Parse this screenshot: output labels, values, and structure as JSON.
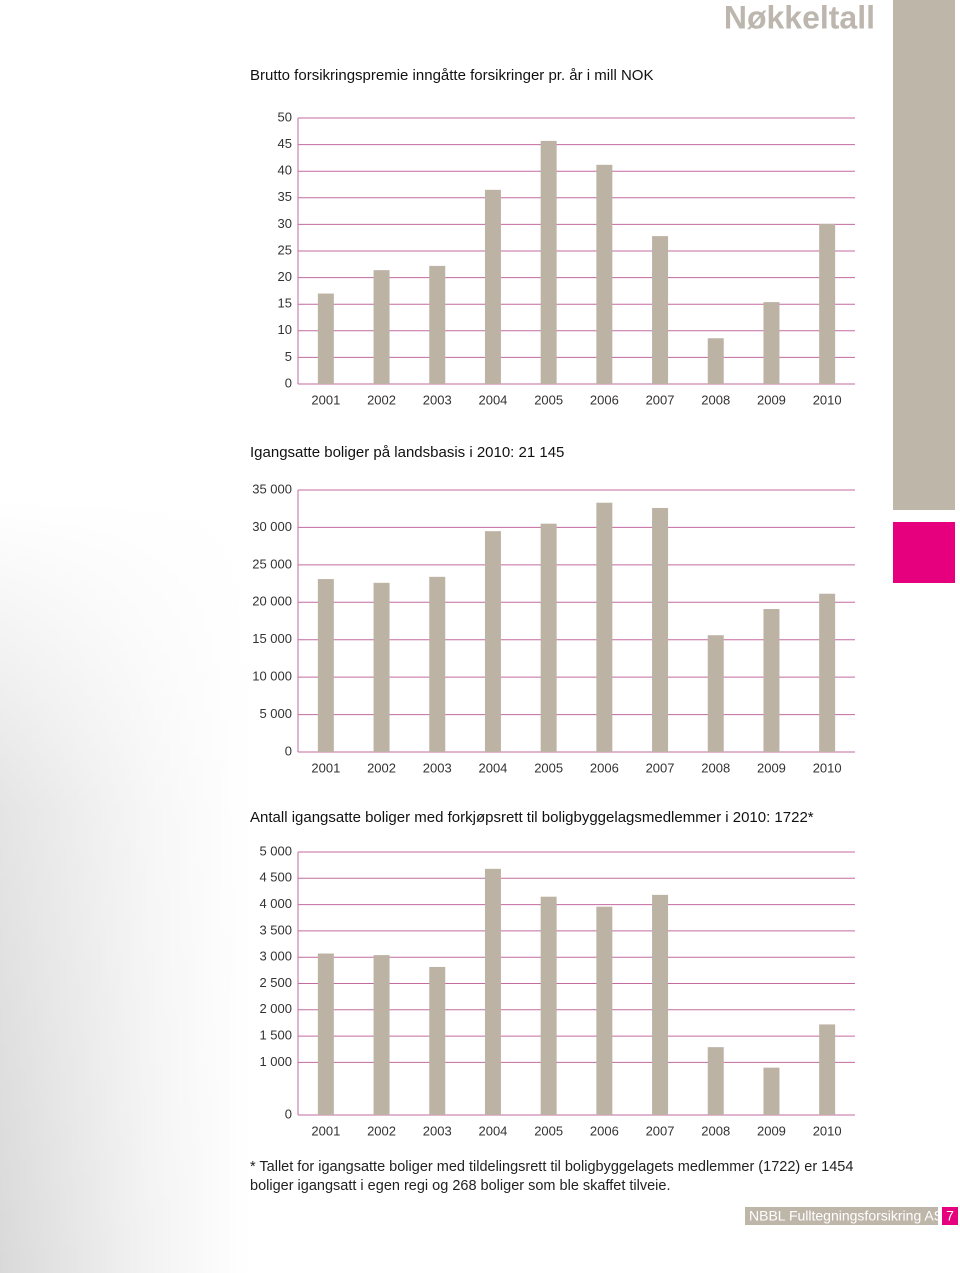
{
  "header": {
    "title": "Nøkkeltall"
  },
  "chart_data": [
    {
      "type": "bar",
      "title": "Brutto forsikringspremie inngåtte forsikringer pr. år i mill NOK",
      "categories": [
        "2001",
        "2002",
        "2003",
        "2004",
        "2005",
        "2006",
        "2007",
        "2008",
        "2009",
        "2010"
      ],
      "values": [
        17,
        21.4,
        22.2,
        36.5,
        45.7,
        41.2,
        27.8,
        8.6,
        15.4,
        30.1
      ],
      "color": "#bdb3a5",
      "grid": true,
      "grid_color": "#c36a9f",
      "ylim": [
        0,
        50
      ],
      "yticks": [
        0,
        5,
        10,
        15,
        20,
        25,
        30,
        35,
        40,
        45,
        50
      ]
    },
    {
      "type": "bar",
      "title": "Igangsatte boliger på landsbasis i 2010: 21 145",
      "categories": [
        "2001",
        "2002",
        "2003",
        "2004",
        "2005",
        "2006",
        "2007",
        "2008",
        "2009",
        "2010"
      ],
      "values": [
        23100,
        22600,
        23400,
        29500,
        30500,
        33300,
        32600,
        15600,
        19100,
        21145
      ],
      "color": "#bdb3a5",
      "grid": true,
      "grid_color": "#c36a9f",
      "ylim": [
        0,
        35000
      ],
      "yticks": [
        0,
        {
          "value": 5000,
          "label": "5 000"
        },
        {
          "value": 10000,
          "label": "10 000"
        },
        {
          "value": 15000,
          "label": "15 000"
        },
        {
          "value": 20000,
          "label": "20 000"
        },
        {
          "value": 25000,
          "label": "25 000"
        },
        {
          "value": 30000,
          "label": "30 000"
        },
        {
          "value": 35000,
          "label": "35 000"
        }
      ]
    },
    {
      "type": "bar",
      "title": "Antall igangsatte boliger med forkjøpsrett til boligbyggelagsmedlemmer i 2010: 1722*",
      "categories": [
        "2001",
        "2002",
        "2003",
        "2004",
        "2005",
        "2006",
        "2007",
        "2008",
        "2009",
        "2010"
      ],
      "values": [
        3070,
        3040,
        2815,
        4680,
        4150,
        3960,
        4185,
        1290,
        900,
        1722
      ],
      "color": "#bdb3a5",
      "grid": true,
      "grid_color": "#c36a9f",
      "ylim": [
        0,
        5000
      ],
      "yticks": [
        0,
        {
          "value": 1000,
          "label": "1 000"
        },
        {
          "value": 1500,
          "label": "1 500"
        },
        {
          "value": 2000,
          "label": "2 000"
        },
        {
          "value": 2500,
          "label": "2 500"
        },
        {
          "value": 3000,
          "label": "3 000"
        },
        {
          "value": 3500,
          "label": "3 500"
        },
        {
          "value": 4000,
          "label": "4 000"
        },
        {
          "value": 4500,
          "label": "4 500"
        },
        {
          "value": 5000,
          "label": "5 000"
        }
      ]
    }
  ],
  "footnote": "* Tallet for igangsatte boliger med tildelingsrett til boligbyggelagets medlemmer (1722) er 1454 boliger igangsatt i egen regi og 268 boliger som ble skaffet tilveie.",
  "footer": {
    "company": "NBBL Fulltegningsforsikring AS",
    "page": "7"
  }
}
